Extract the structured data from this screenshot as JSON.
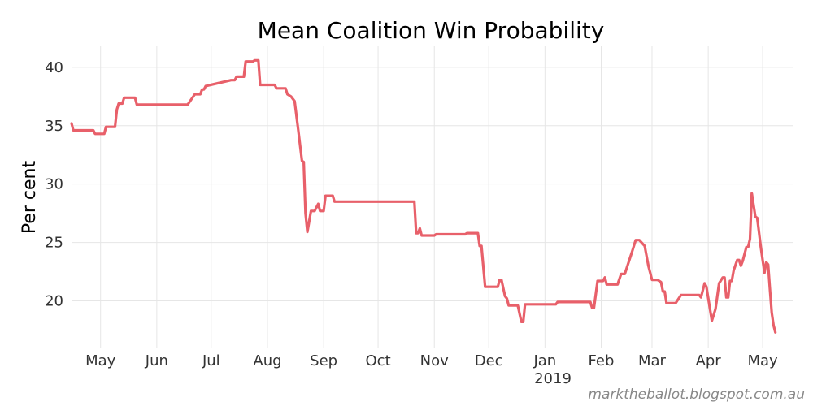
{
  "chart_data": {
    "type": "line",
    "title": "Mean Coalition Win Probability",
    "xlabel": "",
    "ylabel": "Per cent",
    "year_label": "2019",
    "footnote": "marktheballot.blogspot.com.au",
    "grid": true,
    "color": "#e8606a",
    "ylim": [
      16,
      41.8
    ],
    "yticks": [
      20,
      25,
      30,
      35,
      40
    ],
    "xlim": [
      "2018-04-15",
      "2019-05-18"
    ],
    "xticks": [
      {
        "date": "2018-05-01",
        "label": "May"
      },
      {
        "date": "2018-06-01",
        "label": "Jun"
      },
      {
        "date": "2018-07-01",
        "label": "Jul"
      },
      {
        "date": "2018-08-01",
        "label": "Aug"
      },
      {
        "date": "2018-09-01",
        "label": "Sep"
      },
      {
        "date": "2018-10-01",
        "label": "Oct"
      },
      {
        "date": "2018-11-01",
        "label": "Nov"
      },
      {
        "date": "2018-12-01",
        "label": "Dec"
      },
      {
        "date": "2019-01-01",
        "label": "Jan"
      },
      {
        "date": "2019-02-01",
        "label": "Feb"
      },
      {
        "date": "2019-03-01",
        "label": "Mar"
      },
      {
        "date": "2019-04-01",
        "label": "Apr"
      },
      {
        "date": "2019-05-01",
        "label": "May"
      }
    ],
    "series": [
      {
        "points": [
          [
            "2018-04-15",
            35.2
          ],
          [
            "2018-04-16",
            34.6
          ],
          [
            "2018-04-27",
            34.6
          ],
          [
            "2018-04-28",
            34.3
          ],
          [
            "2018-05-03",
            34.3
          ],
          [
            "2018-05-04",
            34.9
          ],
          [
            "2018-05-09",
            34.9
          ],
          [
            "2018-05-10",
            36.4
          ],
          [
            "2018-05-11",
            36.9
          ],
          [
            "2018-05-13",
            36.9
          ],
          [
            "2018-05-14",
            37.4
          ],
          [
            "2018-05-20",
            37.4
          ],
          [
            "2018-05-21",
            36.8
          ],
          [
            "2018-06-18",
            36.8
          ],
          [
            "2018-06-22",
            37.7
          ],
          [
            "2018-06-25",
            37.7
          ],
          [
            "2018-06-26",
            38.1
          ],
          [
            "2018-06-27",
            38.1
          ],
          [
            "2018-06-28",
            38.4
          ],
          [
            "2018-07-12",
            38.9
          ],
          [
            "2018-07-14",
            38.9
          ],
          [
            "2018-07-15",
            39.2
          ],
          [
            "2018-07-19",
            39.2
          ],
          [
            "2018-07-20",
            40.5
          ],
          [
            "2018-07-24",
            40.5
          ],
          [
            "2018-07-25",
            40.6
          ],
          [
            "2018-07-27",
            40.6
          ],
          [
            "2018-07-28",
            38.5
          ],
          [
            "2018-08-05",
            38.5
          ],
          [
            "2018-08-06",
            38.2
          ],
          [
            "2018-08-11",
            38.2
          ],
          [
            "2018-08-12",
            37.7
          ],
          [
            "2018-08-14",
            37.5
          ],
          [
            "2018-08-16",
            37.1
          ],
          [
            "2018-08-18",
            34.6
          ],
          [
            "2018-08-20",
            32.0
          ],
          [
            "2018-08-21",
            31.9
          ],
          [
            "2018-08-22",
            27.5
          ],
          [
            "2018-08-23",
            25.9
          ],
          [
            "2018-08-25",
            27.7
          ],
          [
            "2018-08-27",
            27.7
          ],
          [
            "2018-08-29",
            28.3
          ],
          [
            "2018-08-30",
            27.7
          ],
          [
            "2018-09-01",
            27.7
          ],
          [
            "2018-09-02",
            29.0
          ],
          [
            "2018-09-06",
            29.0
          ],
          [
            "2018-09-07",
            28.5
          ],
          [
            "2018-10-21",
            28.5
          ],
          [
            "2018-10-22",
            25.8
          ],
          [
            "2018-10-23",
            25.8
          ],
          [
            "2018-10-24",
            26.2
          ],
          [
            "2018-10-25",
            25.6
          ],
          [
            "2018-11-01",
            25.6
          ],
          [
            "2018-11-02",
            25.7
          ],
          [
            "2018-11-18",
            25.7
          ],
          [
            "2018-11-19",
            25.8
          ],
          [
            "2018-11-25",
            25.8
          ],
          [
            "2018-11-26",
            24.7
          ],
          [
            "2018-11-27",
            24.7
          ],
          [
            "2018-11-29",
            21.2
          ],
          [
            "2018-12-06",
            21.2
          ],
          [
            "2018-12-07",
            21.8
          ],
          [
            "2018-12-08",
            21.8
          ],
          [
            "2018-12-10",
            20.4
          ],
          [
            "2018-12-11",
            20.2
          ],
          [
            "2018-12-12",
            19.6
          ],
          [
            "2018-12-17",
            19.6
          ],
          [
            "2018-12-19",
            18.2
          ],
          [
            "2018-12-20",
            18.2
          ],
          [
            "2018-12-21",
            19.7
          ],
          [
            "2019-01-07",
            19.7
          ],
          [
            "2019-01-08",
            19.9
          ],
          [
            "2019-01-26",
            19.9
          ],
          [
            "2019-01-27",
            19.4
          ],
          [
            "2019-01-28",
            19.4
          ],
          [
            "2019-01-30",
            21.7
          ],
          [
            "2019-02-02",
            21.7
          ],
          [
            "2019-02-03",
            22.0
          ],
          [
            "2019-02-04",
            21.4
          ],
          [
            "2019-02-10",
            21.4
          ],
          [
            "2019-02-12",
            22.3
          ],
          [
            "2019-02-14",
            22.3
          ],
          [
            "2019-02-18",
            24.2
          ],
          [
            "2019-02-20",
            25.2
          ],
          [
            "2019-02-22",
            25.2
          ],
          [
            "2019-02-25",
            24.7
          ],
          [
            "2019-02-27",
            23.0
          ],
          [
            "2019-03-01",
            21.8
          ],
          [
            "2019-03-04",
            21.8
          ],
          [
            "2019-03-06",
            21.6
          ],
          [
            "2019-03-07",
            20.8
          ],
          [
            "2019-03-08",
            20.8
          ],
          [
            "2019-03-09",
            19.8
          ],
          [
            "2019-03-14",
            19.8
          ],
          [
            "2019-03-17",
            20.5
          ],
          [
            "2019-03-27",
            20.5
          ],
          [
            "2019-03-28",
            20.3
          ],
          [
            "2019-03-30",
            21.5
          ],
          [
            "2019-03-31",
            21.2
          ],
          [
            "2019-04-03",
            18.3
          ],
          [
            "2019-04-05",
            19.3
          ],
          [
            "2019-04-07",
            21.5
          ],
          [
            "2019-04-09",
            22.0
          ],
          [
            "2019-04-10",
            22.0
          ],
          [
            "2019-04-11",
            20.3
          ],
          [
            "2019-04-12",
            20.3
          ],
          [
            "2019-04-13",
            21.7
          ],
          [
            "2019-04-14",
            21.7
          ],
          [
            "2019-04-15",
            22.6
          ],
          [
            "2019-04-17",
            23.5
          ],
          [
            "2019-04-18",
            23.5
          ],
          [
            "2019-04-19",
            23.0
          ],
          [
            "2019-04-20",
            23.4
          ],
          [
            "2019-04-22",
            24.6
          ],
          [
            "2019-04-23",
            24.6
          ],
          [
            "2019-04-24",
            25.3
          ],
          [
            "2019-04-25",
            29.2
          ],
          [
            "2019-04-27",
            27.2
          ],
          [
            "2019-04-28",
            27.1
          ],
          [
            "2019-04-30",
            24.6
          ],
          [
            "2019-05-02",
            22.4
          ],
          [
            "2019-05-03",
            23.3
          ],
          [
            "2019-05-04",
            23.1
          ],
          [
            "2019-05-05",
            21.0
          ],
          [
            "2019-05-06",
            19.0
          ],
          [
            "2019-05-07",
            17.9
          ],
          [
            "2019-05-08",
            17.3
          ]
        ]
      }
    ]
  }
}
